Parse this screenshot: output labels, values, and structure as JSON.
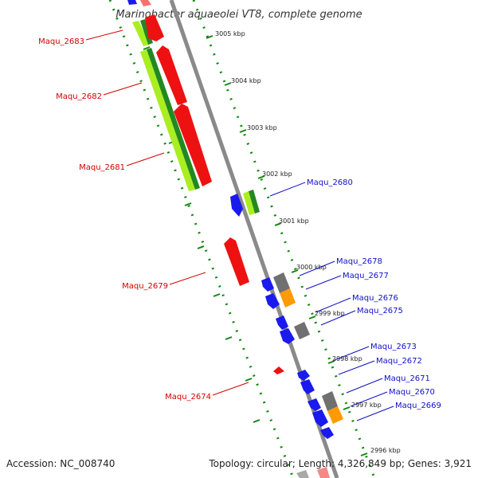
{
  "title": "Marinobacter aquaeolei VT8, complete genome",
  "footer": {
    "accession": "Accession: NC_008740",
    "summary": "Topology: circular; Length: 4,326,849 bp; Genes: 3,921"
  },
  "kbp_labels": [
    "3005 kbp",
    "3004 kbp",
    "3003 kbp",
    "3002 kbp",
    "3001 kbp",
    "3000 kbp",
    "2999 kbp",
    "2998 kbp",
    "2997 kbp",
    "2996 kbp"
  ],
  "gene_labels_left": [
    "Maqu_2683",
    "Maqu_2682",
    "Maqu_2681",
    "Maqu_2679",
    "Maqu_2674"
  ],
  "gene_labels_right": [
    "Maqu_2680",
    "Maqu_2678",
    "Maqu_2677",
    "Maqu_2676",
    "Maqu_2675",
    "Maqu_2673",
    "Maqu_2672",
    "Maqu_2671",
    "Maqu_2670",
    "Maqu_2669"
  ],
  "colors": {
    "backbone": "#8a8a8a",
    "reverse_strand_gene": "#ee1111",
    "forward_strand_gene": "#1a1aee",
    "gc_skew_light": "#aaee22",
    "gc_skew_dark": "#228822",
    "other_feature": "#707070",
    "orange_feature": "#ff9a00",
    "tick_marks": "#118811"
  }
}
